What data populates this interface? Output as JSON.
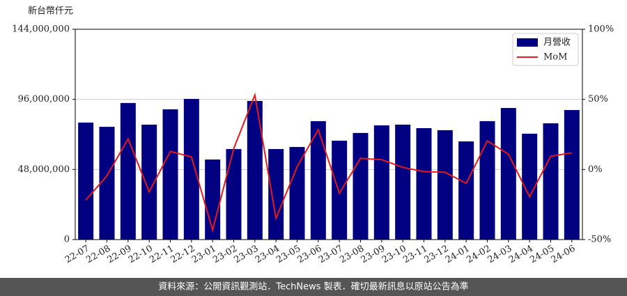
{
  "chart_data": {
    "type": "bar",
    "y_label": "新台幣仟元",
    "categories": [
      "22-07",
      "22-08",
      "22-09",
      "22-10",
      "22-11",
      "22-12",
      "23-01",
      "23-02",
      "23-03",
      "23-04",
      "23-05",
      "23-06",
      "23-07",
      "23-08",
      "23-09",
      "23-10",
      "23-11",
      "23-12",
      "24-01",
      "24-02",
      "24-03",
      "24-04",
      "24-05",
      "24-06"
    ],
    "series": [
      {
        "name": "月營收",
        "type": "bar",
        "color": "#000080",
        "values": [
          80100000,
          77200000,
          93500000,
          78700000,
          89200000,
          96300000,
          54800000,
          62000000,
          94900000,
          62000000,
          63400000,
          81100000,
          67700000,
          73000000,
          78200000,
          78700000,
          76300000,
          74900000,
          67200000,
          81100000,
          90100000,
          72500000,
          79600000,
          88700000
        ]
      },
      {
        "name": "MoM",
        "type": "line",
        "axis": "y2",
        "color": "#e31a1c",
        "values": [
          -21.8,
          -4.5,
          21.8,
          -15.9,
          12.9,
          8.9,
          -43.2,
          14.9,
          53.1,
          -34.8,
          2.0,
          28.3,
          -16.9,
          7.9,
          7.0,
          1.5,
          -1.5,
          -2.0,
          -9.9,
          20.4,
          10.9,
          -19.4,
          9.4,
          11.9
        ]
      }
    ],
    "ylim": [
      0,
      144000000
    ],
    "yticks": [
      0,
      {
        "value": 48000000,
        "label": "48,000,000"
      },
      {
        "value": 96000000,
        "label": "96,000,000"
      },
      {
        "value": 144000000,
        "label": "144,000,000"
      }
    ],
    "y2lim": [
      -50,
      100
    ],
    "y2ticks": [
      {
        "value": -50,
        "label": "-50%"
      },
      {
        "value": 0,
        "label": "0%"
      },
      {
        "value": 50,
        "label": "50%"
      },
      {
        "value": 100,
        "label": "100%"
      }
    ],
    "grid": true,
    "legend": "upper right"
  },
  "footer": "資料來源：公開資訊觀測站．TechNews 製表．確切最新訊息以原站公告為準"
}
